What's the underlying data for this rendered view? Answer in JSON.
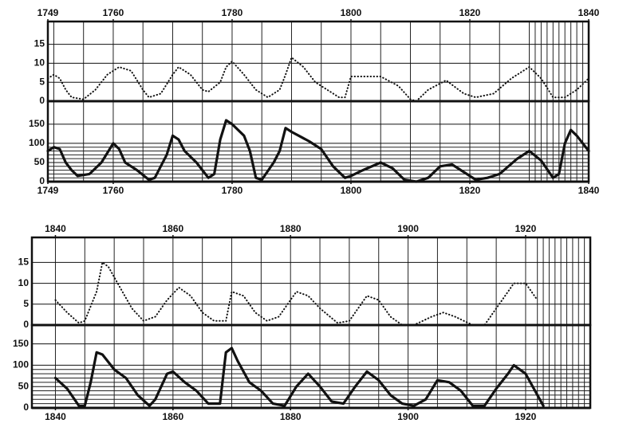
{
  "chart_data": [
    {
      "type": "line",
      "color": "#111",
      "line_style": "dotted",
      "xtick_position": "top",
      "xlim": [
        1749,
        1840
      ],
      "xticks": [
        1749,
        1760,
        1780,
        1800,
        1820,
        1840
      ],
      "ylim": [
        0,
        21
      ],
      "yticks": [
        0,
        5,
        10,
        15
      ],
      "minor_xticks": [
        1750,
        1755,
        1760,
        1765,
        1770,
        1775,
        1780,
        1785,
        1790,
        1795,
        1800,
        1805,
        1810,
        1815,
        1820,
        1825,
        1830,
        1831,
        1832,
        1833,
        1834,
        1835,
        1836,
        1837,
        1838,
        1839
      ],
      "minor_yticks": [],
      "x": [
        1749,
        1750,
        1751,
        1752,
        1753,
        1755,
        1757,
        1759,
        1761,
        1763,
        1765,
        1766,
        1768,
        1770,
        1771,
        1773,
        1775,
        1776,
        1778,
        1779,
        1780,
        1782,
        1784,
        1786,
        1788,
        1789,
        1790,
        1792,
        1794,
        1796,
        1798,
        1799,
        1800,
        1805,
        1808,
        1810,
        1811,
        1813,
        1816,
        1819,
        1821,
        1824,
        1827,
        1830,
        1832,
        1834,
        1836,
        1838,
        1840
      ],
      "values": [
        6,
        7,
        6,
        3,
        1,
        0.5,
        3,
        7,
        9,
        8,
        3,
        1,
        2,
        7,
        9,
        7,
        3,
        2.5,
        5,
        9,
        10.5,
        7,
        3,
        1,
        3,
        7,
        11.5,
        9,
        5,
        3,
        1,
        1,
        6.5,
        6.5,
        4,
        0.5,
        0,
        3,
        5.5,
        2,
        1,
        2,
        6,
        9,
        6,
        1,
        1,
        3,
        6
      ]
    },
    {
      "type": "line",
      "color": "#111",
      "line_style": "solid",
      "xtick_position": "bottom",
      "xlim": [
        1749,
        1840
      ],
      "xticks": [
        1749,
        1760,
        1780,
        1800,
        1820,
        1840
      ],
      "ylim": [
        0,
        210
      ],
      "yticks": [
        0,
        50,
        100,
        150
      ],
      "minor_xticks": [
        1750,
        1755,
        1760,
        1765,
        1770,
        1775,
        1780,
        1785,
        1790,
        1795,
        1800,
        1805,
        1810,
        1815,
        1820,
        1825,
        1830,
        1831,
        1832,
        1833,
        1834,
        1835,
        1836,
        1837,
        1838,
        1839
      ],
      "minor_yticks": [
        10,
        20,
        30,
        40,
        60,
        70,
        80,
        90
      ],
      "x": [
        1749,
        1750,
        1751,
        1752,
        1753,
        1754,
        1756,
        1758,
        1760,
        1761,
        1762,
        1764,
        1766,
        1767,
        1769,
        1770,
        1771,
        1772,
        1774,
        1776,
        1777,
        1778,
        1779,
        1780,
        1782,
        1783,
        1784,
        1785,
        1787,
        1788,
        1789,
        1790,
        1793,
        1795,
        1797,
        1799,
        1800,
        1802,
        1805,
        1807,
        1809,
        1811,
        1813,
        1815,
        1817,
        1819,
        1821,
        1823,
        1825,
        1828,
        1830,
        1832,
        1834,
        1835,
        1836,
        1837,
        1838,
        1840
      ],
      "values": [
        80,
        90,
        85,
        50,
        30,
        15,
        20,
        50,
        100,
        85,
        50,
        30,
        5,
        10,
        70,
        120,
        110,
        80,
        50,
        10,
        20,
        110,
        160,
        150,
        120,
        80,
        10,
        5,
        50,
        80,
        140,
        130,
        105,
        85,
        40,
        10,
        15,
        30,
        50,
        35,
        5,
        0,
        10,
        40,
        45,
        25,
        5,
        10,
        20,
        60,
        80,
        55,
        10,
        20,
        100,
        135,
        120,
        80
      ]
    },
    {
      "type": "line",
      "color": "#111",
      "line_style": "dotted",
      "xtick_position": "top",
      "xlim": [
        1836,
        1931
      ],
      "xticks": [
        1840,
        1860,
        1880,
        1900,
        1920
      ],
      "ylim": [
        0,
        21
      ],
      "yticks": [
        0,
        5,
        10,
        15
      ],
      "minor_xticks": [
        1840,
        1845,
        1850,
        1855,
        1860,
        1865,
        1870,
        1875,
        1880,
        1885,
        1890,
        1895,
        1900,
        1905,
        1910,
        1915,
        1920,
        1922,
        1923,
        1924,
        1925,
        1926,
        1927,
        1928,
        1929,
        1930
      ],
      "minor_yticks": [],
      "x": [
        1840,
        1842,
        1844,
        1845,
        1847,
        1848,
        1849,
        1851,
        1853,
        1855,
        1857,
        1859,
        1861,
        1863,
        1865,
        1867,
        1869,
        1870,
        1872,
        1874,
        1876,
        1878,
        1881,
        1883,
        1885,
        1888,
        1890,
        1893,
        1895,
        1897,
        1899,
        1901,
        1904,
        1906,
        1908,
        1911,
        1913,
        1916,
        1918,
        1920,
        1922
      ],
      "values": [
        6,
        3,
        0.5,
        1,
        8,
        15,
        14,
        9,
        4,
        1,
        2,
        6,
        9,
        7,
        3,
        1,
        1,
        8,
        7,
        3,
        1,
        2,
        8,
        7,
        4,
        0.5,
        1,
        7,
        6,
        2,
        0,
        0,
        2,
        3,
        2,
        0,
        0,
        6,
        10,
        10,
        6
      ]
    },
    {
      "type": "line",
      "color": "#111",
      "line_style": "solid",
      "xtick_position": "bottom",
      "xlim": [
        1836,
        1931
      ],
      "xticks": [
        1840,
        1860,
        1880,
        1900,
        1920
      ],
      "ylim": [
        0,
        194
      ],
      "yticks": [
        0,
        50,
        100,
        150
      ],
      "minor_xticks": [
        1840,
        1845,
        1850,
        1855,
        1860,
        1865,
        1870,
        1875,
        1880,
        1885,
        1890,
        1895,
        1900,
        1905,
        1910,
        1915,
        1920,
        1922,
        1923,
        1924,
        1925,
        1926,
        1927,
        1928,
        1929,
        1930
      ],
      "minor_yticks": [
        10,
        20,
        30,
        40,
        60,
        70,
        80,
        90
      ],
      "x": [
        1840,
        1842,
        1843,
        1844,
        1845,
        1846,
        1847,
        1848,
        1850,
        1852,
        1854,
        1856,
        1857,
        1859,
        1860,
        1862,
        1864,
        1866,
        1868,
        1869,
        1870,
        1871,
        1873,
        1875,
        1877,
        1879,
        1881,
        1883,
        1885,
        1887,
        1889,
        1891,
        1893,
        1895,
        1897,
        1899,
        1901,
        1903,
        1905,
        1907,
        1909,
        1911,
        1913,
        1915,
        1917,
        1918,
        1920,
        1922,
        1923
      ],
      "values": [
        70,
        45,
        25,
        5,
        5,
        60,
        130,
        125,
        90,
        70,
        30,
        5,
        20,
        80,
        85,
        60,
        40,
        10,
        10,
        130,
        140,
        110,
        60,
        40,
        10,
        5,
        50,
        80,
        50,
        15,
        10,
        50,
        85,
        65,
        30,
        10,
        5,
        20,
        65,
        60,
        40,
        5,
        5,
        45,
        80,
        100,
        80,
        30,
        5
      ]
    }
  ]
}
